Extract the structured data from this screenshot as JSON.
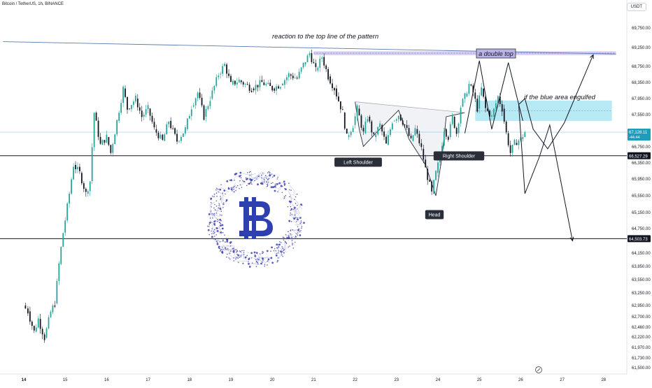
{
  "header": {
    "title": "Bitcoin / TetherUS, 1h, BINANCE",
    "currency": "USDT"
  },
  "colors": {
    "up": "#26a69a",
    "down": "#131722",
    "blue_zone": "#a6e5f2",
    "purple_zone": "#c9c3ec",
    "pattern_fill": "#e3e8ee",
    "price_label_blue": "#1f9bbb",
    "level_label": "#131722",
    "logo_blue": "#2e3fb0"
  },
  "chart_data": {
    "type": "line",
    "title": "Bitcoin / TetherUS, 1h, BINANCE",
    "x_tick_labels": [
      "14",
      "15",
      "16",
      "17",
      "18",
      "19",
      "20",
      "21",
      "22",
      "23",
      "24",
      "25",
      "26",
      "27",
      "28"
    ],
    "y_ticks": [
      69750,
      69250,
      68750,
      68350,
      67950,
      67550,
      66750,
      66350,
      65950,
      65550,
      65150,
      64750,
      64150,
      63850,
      63550,
      63250,
      62950,
      62700,
      62460,
      62220,
      61970,
      61730,
      61500
    ],
    "y_range": [
      61500,
      70100
    ],
    "price_path": [
      [
        13.98,
        62950
      ],
      [
        14.1,
        62820
      ],
      [
        14.25,
        62350
      ],
      [
        14.35,
        62650
      ],
      [
        14.5,
        62200
      ],
      [
        14.65,
        62800
      ],
      [
        14.75,
        63000
      ],
      [
        14.85,
        63900
      ],
      [
        14.95,
        64650
      ],
      [
        15.1,
        65600
      ],
      [
        15.2,
        66300
      ],
      [
        15.35,
        66100
      ],
      [
        15.5,
        65600
      ],
      [
        15.6,
        65900
      ],
      [
        15.7,
        67600
      ],
      [
        15.85,
        66800
      ],
      [
        16.0,
        67000
      ],
      [
        16.1,
        66600
      ],
      [
        16.25,
        67400
      ],
      [
        16.4,
        68200
      ],
      [
        16.5,
        67700
      ],
      [
        16.7,
        67950
      ],
      [
        16.85,
        67500
      ],
      [
        17.0,
        67700
      ],
      [
        17.15,
        67200
      ],
      [
        17.35,
        66900
      ],
      [
        17.5,
        67400
      ],
      [
        17.7,
        66900
      ],
      [
        17.9,
        67200
      ],
      [
        18.05,
        67750
      ],
      [
        18.2,
        68100
      ],
      [
        18.35,
        67500
      ],
      [
        18.5,
        67950
      ],
      [
        18.7,
        68550
      ],
      [
        18.85,
        68800
      ],
      [
        19.0,
        68300
      ],
      [
        19.2,
        68400
      ],
      [
        19.5,
        68200
      ],
      [
        19.75,
        68350
      ],
      [
        20.0,
        68200
      ],
      [
        20.2,
        68300
      ],
      [
        20.4,
        68550
      ],
      [
        20.6,
        68450
      ],
      [
        20.75,
        68800
      ],
      [
        20.9,
        69100
      ],
      [
        21.05,
        68650
      ],
      [
        21.2,
        69000
      ],
      [
        21.35,
        68500
      ],
      [
        21.5,
        68200
      ],
      [
        21.7,
        67600
      ],
      [
        21.8,
        67000
      ],
      [
        21.95,
        67300
      ],
      [
        22.05,
        67700
      ],
      [
        22.2,
        67100
      ],
      [
        22.3,
        67500
      ],
      [
        22.45,
        67000
      ],
      [
        22.6,
        67300
      ],
      [
        22.75,
        66800
      ],
      [
        22.9,
        67400
      ],
      [
        23.05,
        67550
      ],
      [
        23.2,
        67300
      ],
      [
        23.35,
        66900
      ],
      [
        23.45,
        67200
      ],
      [
        23.6,
        66700
      ],
      [
        23.7,
        66200
      ],
      [
        23.85,
        65600
      ],
      [
        23.95,
        66100
      ],
      [
        24.05,
        66500
      ],
      [
        24.15,
        67200
      ],
      [
        24.25,
        67000
      ],
      [
        24.35,
        67500
      ],
      [
        24.45,
        67100
      ],
      [
        24.55,
        67750
      ],
      [
        24.65,
        68000
      ],
      [
        24.75,
        68300
      ],
      [
        24.85,
        68100
      ],
      [
        24.95,
        67700
      ],
      [
        25.05,
        68200
      ],
      [
        25.15,
        67700
      ],
      [
        25.3,
        67500
      ],
      [
        25.45,
        68000
      ],
      [
        25.55,
        67700
      ],
      [
        25.65,
        67100
      ],
      [
        25.75,
        66600
      ],
      [
        25.85,
        66850
      ],
      [
        26.0,
        66950
      ],
      [
        26.1,
        67128
      ]
    ],
    "current_price": "67,128.11",
    "current_price_change": "-44.44",
    "levels": [
      {
        "label": "66,527.29",
        "value": 66527.29
      },
      {
        "label": "64,503.73",
        "value": 64503.73
      }
    ],
    "zones": [
      {
        "name": "top",
        "x": [
          21.0,
          28.3
        ],
        "y": [
          69050,
          69150
        ],
        "color": "purple"
      },
      {
        "name": "blue",
        "x": [
          24.9,
          28.2
        ],
        "y": [
          67400,
          67900
        ],
        "color": "blue"
      }
    ],
    "annotations": [
      {
        "text": "reaction to the top line of the pattern",
        "type": "note"
      },
      {
        "text": "a double top",
        "type": "boxed-note"
      },
      {
        "text": "if the blue area engulfed",
        "type": "note"
      },
      {
        "text": "Left Shoulder",
        "type": "tag"
      },
      {
        "text": "Head",
        "type": "tag"
      },
      {
        "text": "Right Shoulder",
        "type": "tag"
      }
    ],
    "trendline": {
      "points": [
        [
          13.5,
          69400
        ],
        [
          28.3,
          69080
        ]
      ]
    },
    "pattern_outline": [
      [
        22.0,
        67870
      ],
      [
        22.1,
        67200
      ],
      [
        22.2,
        66760
      ],
      [
        22.5,
        67100
      ],
      [
        23.05,
        67660
      ],
      [
        23.3,
        66950
      ],
      [
        23.7,
        66300
      ],
      [
        23.95,
        65550
      ],
      [
        24.1,
        66500
      ],
      [
        24.2,
        67500
      ],
      [
        24.65,
        67600
      ]
    ],
    "projections": [
      {
        "name": "double-top-zigzag",
        "points": [
          [
            24.65,
            67100
          ],
          [
            25.0,
            68900
          ],
          [
            25.3,
            67200
          ],
          [
            25.7,
            68850
          ],
          [
            26.05,
            67400
          ]
        ]
      },
      {
        "name": "bullish-path",
        "points": [
          [
            25.95,
            67800
          ],
          [
            26.1,
            67950
          ],
          [
            26.3,
            67200
          ],
          [
            26.65,
            66700
          ],
          [
            27.05,
            67350
          ],
          [
            27.75,
            69060
          ]
        ]
      },
      {
        "name": "bearish-path",
        "points": [
          [
            25.95,
            67800
          ],
          [
            26.1,
            65600
          ],
          [
            26.45,
            66500
          ],
          [
            26.7,
            67300
          ],
          [
            27.25,
            64450
          ]
        ]
      }
    ]
  }
}
